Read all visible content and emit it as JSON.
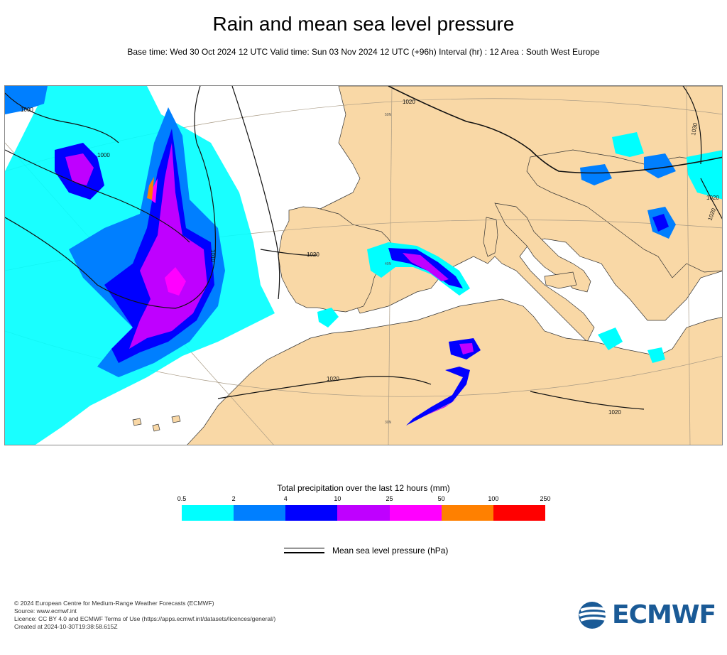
{
  "title": "Rain and mean sea level pressure",
  "subtitle": "Base time: Wed 30 Oct 2024 12 UTC Valid time: Sun 03 Nov 2024 12 UTC (+96h) Interval (hr) : 12 Area : South West Europe",
  "map": {
    "land_color": "#f9d8a6",
    "sea_color": "#ffffff",
    "isobar_labels": [
      "1000",
      "1000",
      "1010",
      "1020",
      "1020",
      "1020",
      "1020",
      "1020",
      "1030",
      "1020"
    ],
    "lat_labels": [
      "50N",
      "40N",
      "30N"
    ]
  },
  "legend": {
    "title": "Total precipitation over the last 12 hours (mm)",
    "ticks": [
      "0.5",
      "2",
      "4",
      "10",
      "25",
      "50",
      "100",
      "250"
    ],
    "colors": [
      "#00ffff",
      "#007fff",
      "#0000ff",
      "#bf00ff",
      "#ff00ff",
      "#ff8000",
      "#ff0000"
    ],
    "msl_label": "Mean sea level pressure (hPa)"
  },
  "footer": {
    "line1": "© 2024 European Centre for Medium-Range Weather Forecasts (ECMWF)",
    "line2": "Source: www.ecmwf.int",
    "line3": "Licence: CC BY 4.0 and ECMWF Terms of Use (https://apps.ecmwf.int/datasets/licences/general/)",
    "line4": "Created at 2024-10-30T19:38:58.615Z"
  },
  "logo_text": "ECMWF"
}
